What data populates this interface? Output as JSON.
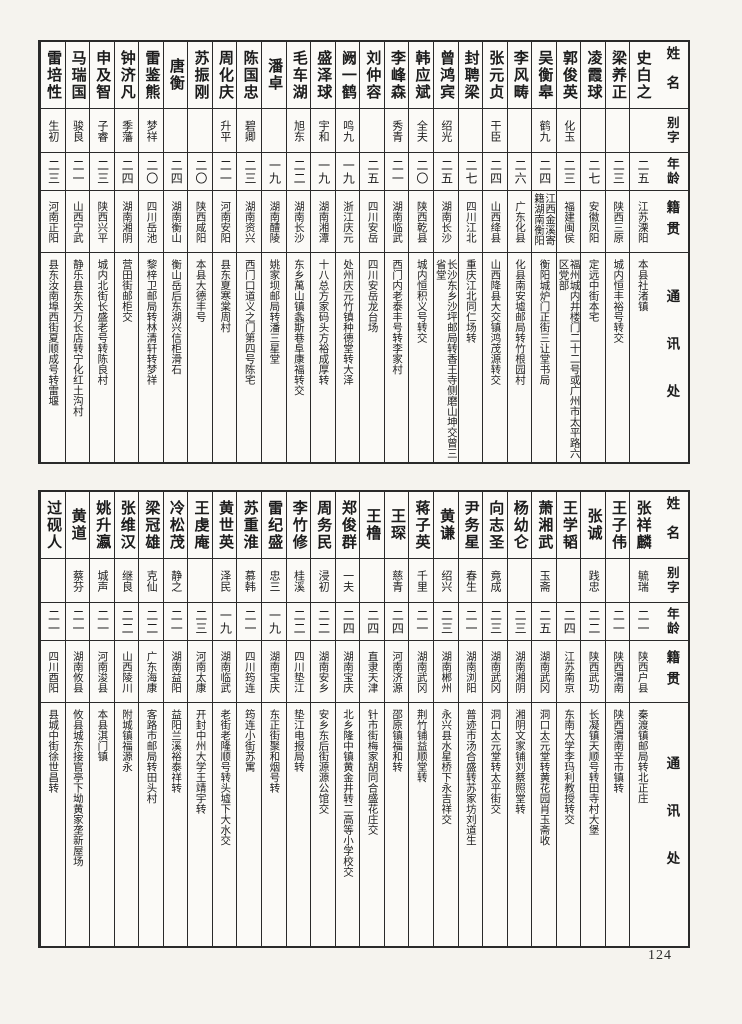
{
  "page": {
    "number": "124"
  },
  "column_headers": {
    "name": "姓名",
    "courtesy_name": "别字",
    "age": "年龄",
    "native_place": "籍贯",
    "address": "通讯处"
  },
  "tables": [
    {
      "id": "upper",
      "entries": [
        {
          "name": "史白之",
          "courtesy_name": "",
          "age": "二五",
          "native_place": "江苏溧阳",
          "address": "本县社渚镇"
        },
        {
          "name": "梁养正",
          "courtesy_name": "",
          "age": "二三",
          "native_place": "陕西三原",
          "address": "城内恒丰裕号转交"
        },
        {
          "name": "凌霞球",
          "courtesy_name": "",
          "age": "二七",
          "native_place": "安徽凤阳",
          "address": "定远中街本宅"
        },
        {
          "name": "郭俊英",
          "courtesy_name": "化玉",
          "age": "二三",
          "native_place": "福建闽侯",
          "address": "福州城内井楼门二十二号或广州市太平路六区党部"
        },
        {
          "name": "吴衡皋",
          "courtesy_name": "鹤九",
          "age": "二四",
          "native_place": "江西金溪寄籍湖南衡阳",
          "address": "衡阳城炉门正街三让堂书局"
        },
        {
          "name": "李风畴",
          "courtesy_name": "",
          "age": "二六",
          "native_place": "广东化县",
          "address": "化县南安墟邮局转竹根园村"
        },
        {
          "name": "张元贞",
          "courtesy_name": "干臣",
          "age": "二四",
          "native_place": "山西绛县",
          "address": "山西降县大交镇鸿茂源转交"
        },
        {
          "name": "封聘梁",
          "courtesy_name": "",
          "age": "二七",
          "native_place": "四川江北",
          "address": "重庆江北同仁场转"
        },
        {
          "name": "曾鸿宾",
          "courtesy_name": "绍光",
          "age": "二五",
          "native_place": "湖南长沙",
          "address": "长沙东乡沙坪邮局转香王寺侧磨山坤交曾三省堂"
        },
        {
          "name": "韩应斌",
          "courtesy_name": "全夫",
          "age": "二〇",
          "native_place": "陕西乾县",
          "address": "城内恒积义号转交"
        },
        {
          "name": "李峰森",
          "courtesy_name": "秀青",
          "age": "二一",
          "native_place": "湖南临武",
          "address": "西门内老泰丰号转李家村"
        },
        {
          "name": "刘仲容",
          "courtesy_name": "",
          "age": "二五",
          "native_place": "四川安岳",
          "address": "四川安岳龙台场"
        },
        {
          "name": "阙一鹤",
          "courtesy_name": "鸣九",
          "age": "一九",
          "native_place": "浙江庆元",
          "address": "处州庆元竹镇种德堂转大泽"
        },
        {
          "name": "盛泽球",
          "courtesy_name": "宇和",
          "age": "一九",
          "native_place": "湖南湘潭",
          "address": "十八总方家码头方裕成厚转"
        },
        {
          "name": "毛车湖",
          "courtesy_name": "旭东",
          "age": "二二",
          "native_place": "湖南长沙",
          "address": "东乡萬山镇螽斯巷阜康福转交"
        },
        {
          "name": "潘卓",
          "courtesy_name": "",
          "age": "一九",
          "native_place": "湖南醴陵",
          "address": "姚家坝邮局转潘三星堂"
        },
        {
          "name": "陈国忠",
          "courtesy_name": "碧卿",
          "age": "二三",
          "native_place": "湖南资兴",
          "address": "西门口道义之门第四号陈宅"
        },
        {
          "name": "周化庆",
          "courtesy_name": "升平",
          "age": "二一",
          "native_place": "河南安阳",
          "address": "县东夏寒棠周村"
        },
        {
          "name": "苏振刚",
          "courtesy_name": "",
          "age": "二〇",
          "native_place": "陕西咸阳",
          "address": "本县大德丰号"
        },
        {
          "name": "唐衡",
          "courtesy_name": "",
          "age": "二四",
          "native_place": "湖南衡山",
          "address": "衡山岳后东湖兴信柜滑石"
        },
        {
          "name": "雷鉴熊",
          "courtesy_name": "梦祥",
          "age": "二〇",
          "native_place": "四川岳池",
          "address": "黎梓卫邮局转林清轩转梦祥"
        },
        {
          "name": "钟济凡",
          "courtesy_name": "季藩",
          "age": "二四",
          "native_place": "湖南湘阴",
          "address": "营田街邮柜交"
        },
        {
          "name": "申及智",
          "courtesy_name": "子睿",
          "age": "二三",
          "native_place": "陕西兴平",
          "address": "城内北街长盛老号转陈良村"
        },
        {
          "name": "马瑞国",
          "courtesy_name": "骏良",
          "age": "二一",
          "native_place": "山西宁武",
          "address": "静乐县东关万长店转宁化红土沟村"
        },
        {
          "name": "雷培性",
          "courtesy_name": "生初",
          "age": "二三",
          "native_place": "河南正阳",
          "address": "县东汝南埠西街夏顺成号转雷堰"
        }
      ]
    },
    {
      "id": "lower",
      "entries": [
        {
          "name": "张祥麟",
          "courtesy_name": "毓瑞",
          "age": "二一",
          "native_place": "陕西户县",
          "address": "秦渡镇邮局转北正庄"
        },
        {
          "name": "王子伟",
          "courtesy_name": "",
          "age": "二一",
          "native_place": "陕西渭南",
          "address": "陕西渭南辛市镇转"
        },
        {
          "name": "张诚",
          "courtesy_name": "践忠",
          "age": "二二",
          "native_place": "陕西武功",
          "address": "长凝镇天顺号转田寺村大堡"
        },
        {
          "name": "王学韬",
          "courtesy_name": "",
          "age": "二四",
          "native_place": "江苏南京",
          "address": "东南大学李玛利教授转交"
        },
        {
          "name": "萧湘武",
          "courtesy_name": "玉斋",
          "age": "二五",
          "native_place": "湖南武冈",
          "address": "洞口太元堂转黄花园肖玉斋收"
        },
        {
          "name": "杨幼仑",
          "courtesy_name": "",
          "age": "二三",
          "native_place": "湖南湘阴",
          "address": "湘阴文家铺刘蔡照堂转"
        },
        {
          "name": "向志圣",
          "courtesy_name": "竟成",
          "age": "二三",
          "native_place": "湖南武冈",
          "address": "洞口太元堂转太平街交"
        },
        {
          "name": "尹务星",
          "courtesy_name": "春生",
          "age": "二一",
          "native_place": "湖南浏阳",
          "address": "普迹市汤合盛转苏家坊刘道生"
        },
        {
          "name": "黄谦",
          "courtesy_name": "绍兴",
          "age": "二三",
          "native_place": "湖南郴州",
          "address": "永兴县水星桥下永吉祥交"
        },
        {
          "name": "蒋子英",
          "courtesy_name": "千里",
          "age": "二一",
          "native_place": "湖南武冈",
          "address": "荆竹铺益顺堂转"
        },
        {
          "name": "王琛",
          "courtesy_name": "慈青",
          "age": "二四",
          "native_place": "河南济源",
          "address": "邵原镇福和转"
        },
        {
          "name": "王橹",
          "courtesy_name": "",
          "age": "二四",
          "native_place": "直隶天津",
          "address": "针市街梅家胡同合盛花庄交"
        },
        {
          "name": "郑俊群",
          "courtesy_name": "一夫",
          "age": "二四",
          "native_place": "湖南宝庆",
          "address": "北乡隆中镇黄金井转二高等小学校交"
        },
        {
          "name": "周务民",
          "courtesy_name": "浸初",
          "age": "二二",
          "native_place": "湖南安乡",
          "address": "安乡东后街源源公馆交"
        },
        {
          "name": "李竹修",
          "courtesy_name": "桂溪",
          "age": "二二",
          "native_place": "四川垫江",
          "address": "垫江电报局转"
        },
        {
          "name": "雷纪盛",
          "courtesy_name": "忠三",
          "age": "一九",
          "native_place": "湖南宝庆",
          "address": "东正街聚和烟号转"
        },
        {
          "name": "苏重淮",
          "courtesy_name": "慕韩",
          "age": "二一",
          "native_place": "四川筠连",
          "address": "筠连小街苏寓"
        },
        {
          "name": "黄世英",
          "courtesy_name": "泽民",
          "age": "一九",
          "native_place": "湖南临武",
          "address": "老街老隆顺号转头墟下大水交"
        },
        {
          "name": "王虔庵",
          "courtesy_name": "",
          "age": "二三",
          "native_place": "河南太康",
          "address": "开封中州大学王靖宇转"
        },
        {
          "name": "冷松茂",
          "courtesy_name": "静之",
          "age": "二一",
          "native_place": "湖南益阳",
          "address": "益阳兰溪裕泰祥转"
        },
        {
          "name": "梁冠雄",
          "courtesy_name": "克仙",
          "age": "二二",
          "native_place": "广东海康",
          "address": "客路市邮局转田头村"
        },
        {
          "name": "张维汉",
          "courtesy_name": "继良",
          "age": "二二",
          "native_place": "山西陵川",
          "address": "附城镇福源永"
        },
        {
          "name": "姚升瀛",
          "courtesy_name": "城声",
          "age": "二一",
          "native_place": "河南浚县",
          "address": "本县淇门镇"
        },
        {
          "name": "黄道",
          "courtesy_name": "蔡芬",
          "age": "二一",
          "native_place": "湖南攸县",
          "address": "攸县城东接官亭下坳黄家垄新屋场"
        },
        {
          "name": "过砚人",
          "courtesy_name": "",
          "age": "二一",
          "native_place": "四川酉阳",
          "address": "县城中街徐世昌转"
        }
      ]
    }
  ]
}
